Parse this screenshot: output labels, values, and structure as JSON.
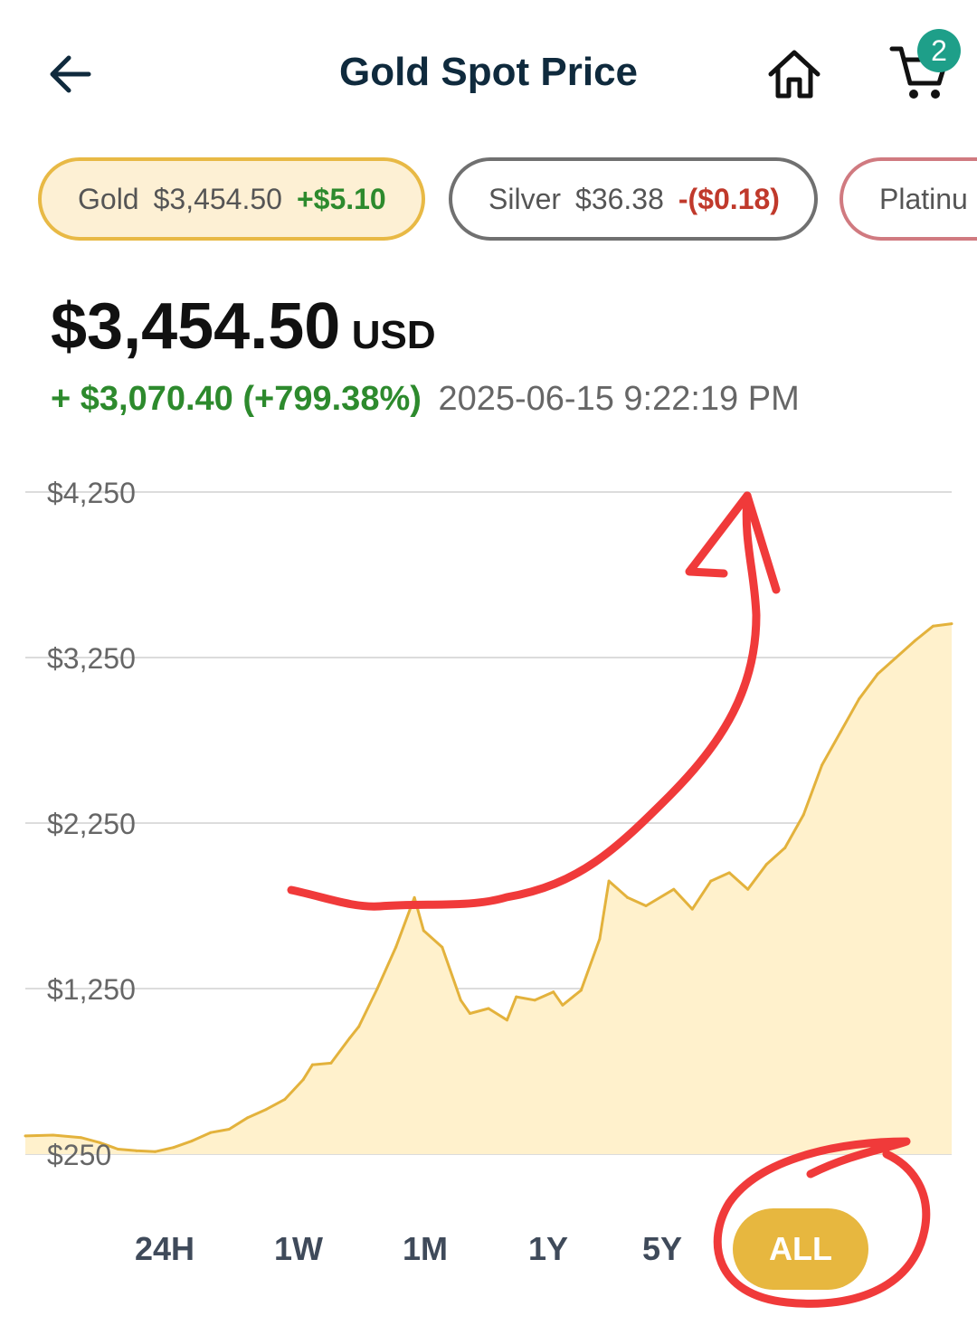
{
  "header": {
    "title": "Gold Spot Price",
    "cart_count": "2",
    "icons": {
      "back": "arrow-left-icon",
      "home": "home-icon",
      "cart": "cart-icon"
    }
  },
  "metals": [
    {
      "name": "Gold",
      "price": "$3,454.50",
      "change": "+$5.10",
      "direction": "up",
      "selected": true
    },
    {
      "name": "Silver",
      "price": "$36.38",
      "change": "-($0.18)",
      "direction": "down",
      "selected": false
    },
    {
      "name": "Platinu",
      "price": "",
      "change": "",
      "direction": "",
      "selected": false
    }
  ],
  "price": {
    "value": "$3,454.50",
    "unit": "USD",
    "change": "+ $3,070.40",
    "change_pct": "(+799.38%)",
    "timestamp": "2025-06-15 9:22:19 PM"
  },
  "colors": {
    "accent": "#e7b73f",
    "line": "#e3b23c",
    "fill": "#fff1cc",
    "up": "#2d8a2d",
    "down": "#c0392b",
    "annotation": "#f03a3a"
  },
  "chart_data": {
    "type": "area",
    "title": "",
    "xlabel": "",
    "ylabel": "",
    "ylim": [
      250,
      4250
    ],
    "yticks": [
      250,
      1250,
      2250,
      3250,
      4250
    ],
    "ytick_labels": [
      "$250",
      "$1,250",
      "$2,250",
      "$3,250",
      "$4,250"
    ],
    "grid": true,
    "legend": "none",
    "x": [
      0,
      3,
      6,
      8,
      10,
      12,
      14,
      16,
      18,
      20,
      22,
      24,
      26,
      28,
      30,
      31,
      33,
      35,
      36,
      38,
      40,
      42,
      43,
      45,
      47,
      48,
      50,
      52,
      53,
      55,
      57,
      58,
      60,
      62,
      63,
      65,
      67,
      70,
      72,
      74,
      76,
      78,
      80,
      82,
      84,
      86,
      88,
      90,
      92,
      94,
      96,
      98,
      100
    ],
    "values": [
      360,
      365,
      350,
      320,
      280,
      270,
      265,
      290,
      330,
      380,
      400,
      470,
      520,
      580,
      700,
      790,
      800,
      950,
      1020,
      1250,
      1500,
      1800,
      1600,
      1500,
      1180,
      1100,
      1130,
      1060,
      1200,
      1180,
      1230,
      1150,
      1240,
      1550,
      1900,
      1800,
      1750,
      1850,
      1730,
      1900,
      1950,
      1850,
      2000,
      2100,
      2300,
      2600,
      2800,
      3000,
      3150,
      3250,
      3350,
      3440,
      3454.5
    ]
  },
  "ranges": [
    "24H",
    "1W",
    "1M",
    "1Y",
    "5Y",
    "ALL"
  ],
  "active_range": "ALL"
}
